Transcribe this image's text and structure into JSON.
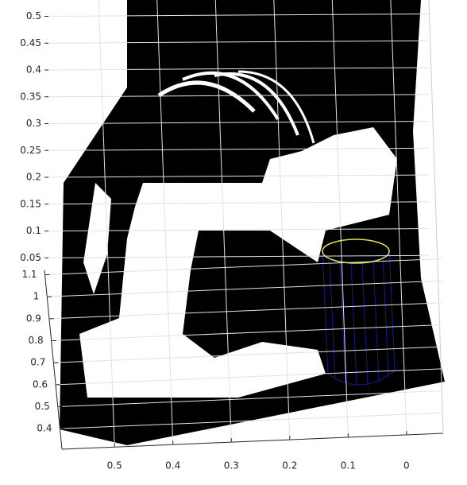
{
  "chart_data": {
    "type": "scatter3",
    "grid": true,
    "color": "#000000",
    "xlim": [
      -0.06,
      0.59
    ],
    "xticks": [
      0.5,
      0.4,
      0.3,
      0.2,
      0.1,
      0
    ],
    "ylim": [
      0.35,
      1.12
    ],
    "yticks": [
      1.1,
      1,
      0.9,
      0.8,
      0.7,
      0.6,
      0.5,
      0.4
    ],
    "zlim": [
      0,
      0.52
    ],
    "zticks": [
      0.5,
      0.45,
      0.4,
      0.35,
      0.3,
      0.25,
      0.2,
      0.15,
      0.1,
      0.05
    ]
  }
}
